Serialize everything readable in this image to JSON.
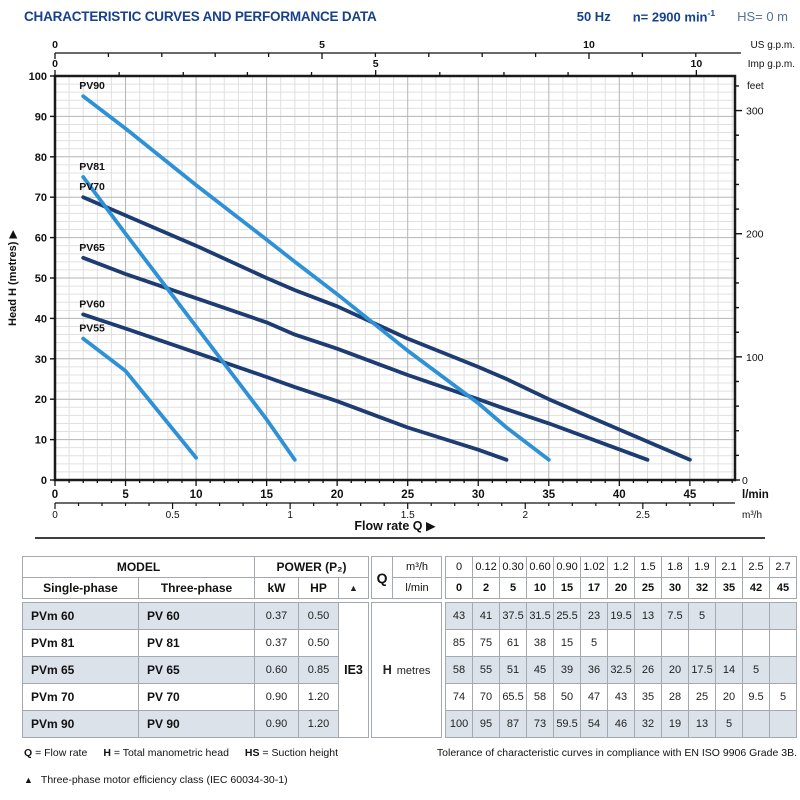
{
  "header": {
    "title": "CHARACTERISTIC CURVES AND PERFORMANCE DATA",
    "frequency": "50 Hz",
    "speed": "n= 2900 min",
    "speed_exp": "-1",
    "suction": "HS= 0 m"
  },
  "colors": {
    "title_blue": "#17418e",
    "subtle_blue": "#54719f",
    "curve_light": "#2e91d5",
    "curve_dark": "#1d3c72",
    "grid_minor": "#e0e0e0",
    "grid_major": "#b5b5b5",
    "plot_border": "#1a1a1a",
    "row_shade": "#dbe2e9"
  },
  "chart_data": {
    "type": "line",
    "title": "",
    "xlabel": "Flow rate Q",
    "arrow": "▶",
    "x_axis": {
      "unit": "l/min",
      "min": 0,
      "max": 48.2,
      "ticks": [
        0,
        5,
        10,
        15,
        20,
        25,
        30,
        35,
        40,
        45
      ],
      "minor_step": 1
    },
    "y_axis": {
      "label": "Head H (metres)",
      "min": 0,
      "max": 100,
      "ticks": [
        0,
        10,
        20,
        30,
        40,
        50,
        60,
        70,
        80,
        90,
        100
      ],
      "minor_step": 2
    },
    "top_axis_us_gpm": {
      "unit": "US g.p.m.",
      "lmin_per_unit": 3.785,
      "ticks": [
        0,
        5,
        10
      ],
      "minor_step": 1,
      "max": 12
    },
    "top_axis_imp_gpm": {
      "unit": "Imp g.p.m.",
      "lmin_per_unit": 4.546,
      "ticks": [
        0,
        5,
        10
      ],
      "minor_step": 1,
      "max": 10
    },
    "right_axis_feet": {
      "unit": "feet",
      "m_per_unit": 0.3048,
      "ticks": [
        100,
        200,
        300
      ],
      "minor_step": 20,
      "max": 320,
      "zero_label": "0"
    },
    "bottom_axis_m3h": {
      "unit": "m³/h",
      "lmin_per_unit": 16.6667,
      "ticks": [
        0,
        0.5,
        1,
        1.5,
        2,
        2.5
      ],
      "minor_step": 0.1
    },
    "series": [
      {
        "name": "PV90",
        "color": "light",
        "points": [
          [
            2,
            95
          ],
          [
            5,
            87
          ],
          [
            10,
            73
          ],
          [
            15,
            59.5
          ],
          [
            17,
            54
          ],
          [
            20,
            46
          ],
          [
            25,
            32
          ],
          [
            30,
            19
          ],
          [
            32,
            13
          ],
          [
            35,
            5
          ]
        ]
      },
      {
        "name": "PV81",
        "color": "light",
        "points": [
          [
            2,
            75
          ],
          [
            5,
            61
          ],
          [
            10,
            38
          ],
          [
            15,
            15
          ],
          [
            17,
            5
          ]
        ]
      },
      {
        "name": "PV70",
        "color": "dark",
        "points": [
          [
            2,
            70
          ],
          [
            5,
            65.5
          ],
          [
            10,
            58
          ],
          [
            15,
            50
          ],
          [
            17,
            47
          ],
          [
            20,
            43
          ],
          [
            25,
            35
          ],
          [
            30,
            28
          ],
          [
            32,
            25
          ],
          [
            35,
            20
          ],
          [
            42,
            9.5
          ],
          [
            45,
            5
          ]
        ]
      },
      {
        "name": "PV65",
        "color": "dark",
        "points": [
          [
            2,
            55
          ],
          [
            5,
            51
          ],
          [
            10,
            45
          ],
          [
            15,
            39
          ],
          [
            17,
            36
          ],
          [
            20,
            32.5
          ],
          [
            25,
            26
          ],
          [
            30,
            20
          ],
          [
            32,
            17.5
          ],
          [
            35,
            14
          ],
          [
            42,
            5
          ]
        ]
      },
      {
        "name": "PV60",
        "color": "dark",
        "points": [
          [
            2,
            41
          ],
          [
            5,
            37.5
          ],
          [
            10,
            31.5
          ],
          [
            15,
            25.5
          ],
          [
            17,
            23
          ],
          [
            20,
            19.5
          ],
          [
            25,
            13
          ],
          [
            30,
            7.5
          ],
          [
            32,
            5
          ]
        ]
      },
      {
        "name": "PV55",
        "color": "light",
        "points": [
          [
            2,
            35
          ],
          [
            5,
            27
          ],
          [
            10,
            5.5
          ]
        ]
      }
    ]
  },
  "table": {
    "header": {
      "model": "MODEL",
      "single_phase": "Single-phase",
      "three_phase": "Three-phase",
      "power": "POWER (P₂)",
      "kw": "kW",
      "hp": "HP",
      "triangle": "▲",
      "q": "Q",
      "m3h": "m³/h",
      "lmin": "l/min",
      "q_m3h_values": [
        "0",
        "0.12",
        "0.30",
        "0.60",
        "0.90",
        "1.02",
        "1.2",
        "1.5",
        "1.8",
        "1.9",
        "2.1",
        "2.5",
        "2.7"
      ],
      "q_lmin_values": [
        "0",
        "2",
        "5",
        "10",
        "15",
        "17",
        "20",
        "25",
        "30",
        "32",
        "35",
        "42",
        "45"
      ]
    },
    "ie3": "IE3",
    "h_label": "H",
    "h_unit": "metres",
    "rows": [
      {
        "single": "PVm 60",
        "three": "PV 60",
        "kw": "0.37",
        "hp": "0.50",
        "shaded": true,
        "h": [
          "43",
          "41",
          "37.5",
          "31.5",
          "25.5",
          "23",
          "19.5",
          "13",
          "7.5",
          "5",
          "",
          "",
          ""
        ]
      },
      {
        "single": "PVm 81",
        "three": "PV 81",
        "kw": "0.37",
        "hp": "0.50",
        "shaded": false,
        "h": [
          "85",
          "75",
          "61",
          "38",
          "15",
          "5",
          "",
          "",
          "",
          "",
          "",
          "",
          ""
        ]
      },
      {
        "single": "PVm 65",
        "three": "PV 65",
        "kw": "0.60",
        "hp": "0.85",
        "shaded": true,
        "h": [
          "58",
          "55",
          "51",
          "45",
          "39",
          "36",
          "32.5",
          "26",
          "20",
          "17.5",
          "14",
          "5",
          ""
        ]
      },
      {
        "single": "PVm 70",
        "three": "PV 70",
        "kw": "0.90",
        "hp": "1.20",
        "shaded": false,
        "h": [
          "74",
          "70",
          "65.5",
          "58",
          "50",
          "47",
          "43",
          "35",
          "28",
          "25",
          "20",
          "9.5",
          "5"
        ]
      },
      {
        "single": "PVm 90",
        "three": "PV 90",
        "kw": "0.90",
        "hp": "1.20",
        "shaded": true,
        "h": [
          "100",
          "95",
          "87",
          "73",
          "59.5",
          "54",
          "46",
          "32",
          "19",
          "13",
          "5",
          "",
          ""
        ]
      }
    ]
  },
  "footnotes": {
    "legend": [
      {
        "key": "Q",
        "text": "= Flow rate"
      },
      {
        "key": "H",
        "text": "= Total manometric head"
      },
      {
        "key": "HS",
        "text": "= Suction height"
      }
    ],
    "tolerance": "Tolerance of characteristic curves in compliance with EN ISO 9906 Grade 3B.",
    "triangle": "▲",
    "efficiency_note": "Three-phase motor efficiency class (IEC 60034-30-1)"
  }
}
